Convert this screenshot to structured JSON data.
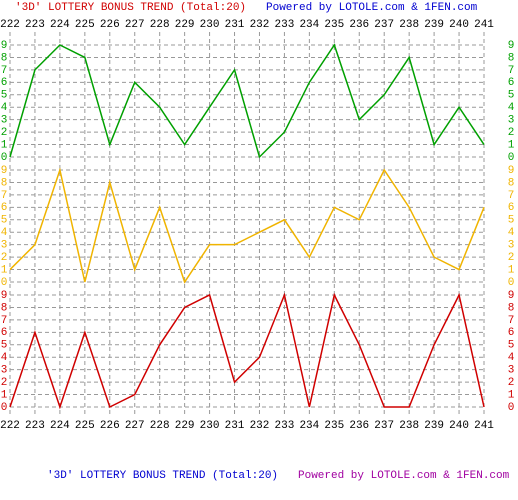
{
  "chart_data": {
    "type": "line",
    "title": "'3D' LOTTERY BONUS TREND (Total:20)",
    "subtitle": "Powered by LOTOLE.com & 1FEN.com",
    "categories": [
      "222",
      "223",
      "224",
      "225",
      "226",
      "227",
      "228",
      "229",
      "230",
      "231",
      "232",
      "233",
      "234",
      "235",
      "236",
      "237",
      "238",
      "239",
      "240",
      "241"
    ],
    "ylim": [
      0,
      9
    ],
    "yticks": [
      0,
      1,
      2,
      3,
      4,
      5,
      6,
      7,
      8,
      9
    ],
    "grid": true,
    "series": [
      {
        "color": "#00a000",
        "values": [
          0,
          7,
          9,
          8,
          1,
          6,
          4,
          1,
          4,
          7,
          0,
          2,
          6,
          9,
          3,
          5,
          8,
          1,
          4,
          1
        ]
      },
      {
        "color": "#f0b400",
        "values": [
          1,
          3,
          9,
          0,
          8,
          1,
          6,
          0,
          3,
          3,
          4,
          5,
          2,
          6,
          5,
          9,
          6,
          2,
          1,
          6
        ]
      },
      {
        "color": "#d00000",
        "values": [
          0,
          6,
          0,
          6,
          0,
          1,
          5,
          8,
          9,
          2,
          4,
          9,
          0,
          9,
          5,
          0,
          0,
          5,
          9,
          0
        ]
      }
    ]
  }
}
